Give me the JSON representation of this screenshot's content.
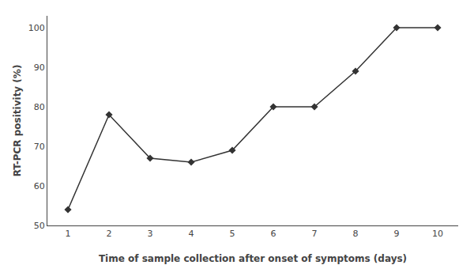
{
  "chart_data": {
    "type": "line",
    "x": [
      1,
      2,
      3,
      4,
      5,
      6,
      7,
      8,
      9,
      10
    ],
    "values": [
      54,
      78,
      67,
      66,
      69,
      80,
      80,
      89,
      100,
      100
    ],
    "xlabel": "Time of sample collection after onset of symptoms (days)",
    "ylabel": "RT-PCR positivity (%)",
    "xlim": [
      0.5,
      10.5
    ],
    "ylim": [
      50,
      103
    ],
    "xticks": [
      1,
      2,
      3,
      4,
      5,
      6,
      7,
      8,
      9,
      10
    ],
    "yticks": [
      50,
      60,
      70,
      80,
      90,
      100
    ],
    "color": "#333333",
    "marker": "diamond",
    "grid": false
  }
}
